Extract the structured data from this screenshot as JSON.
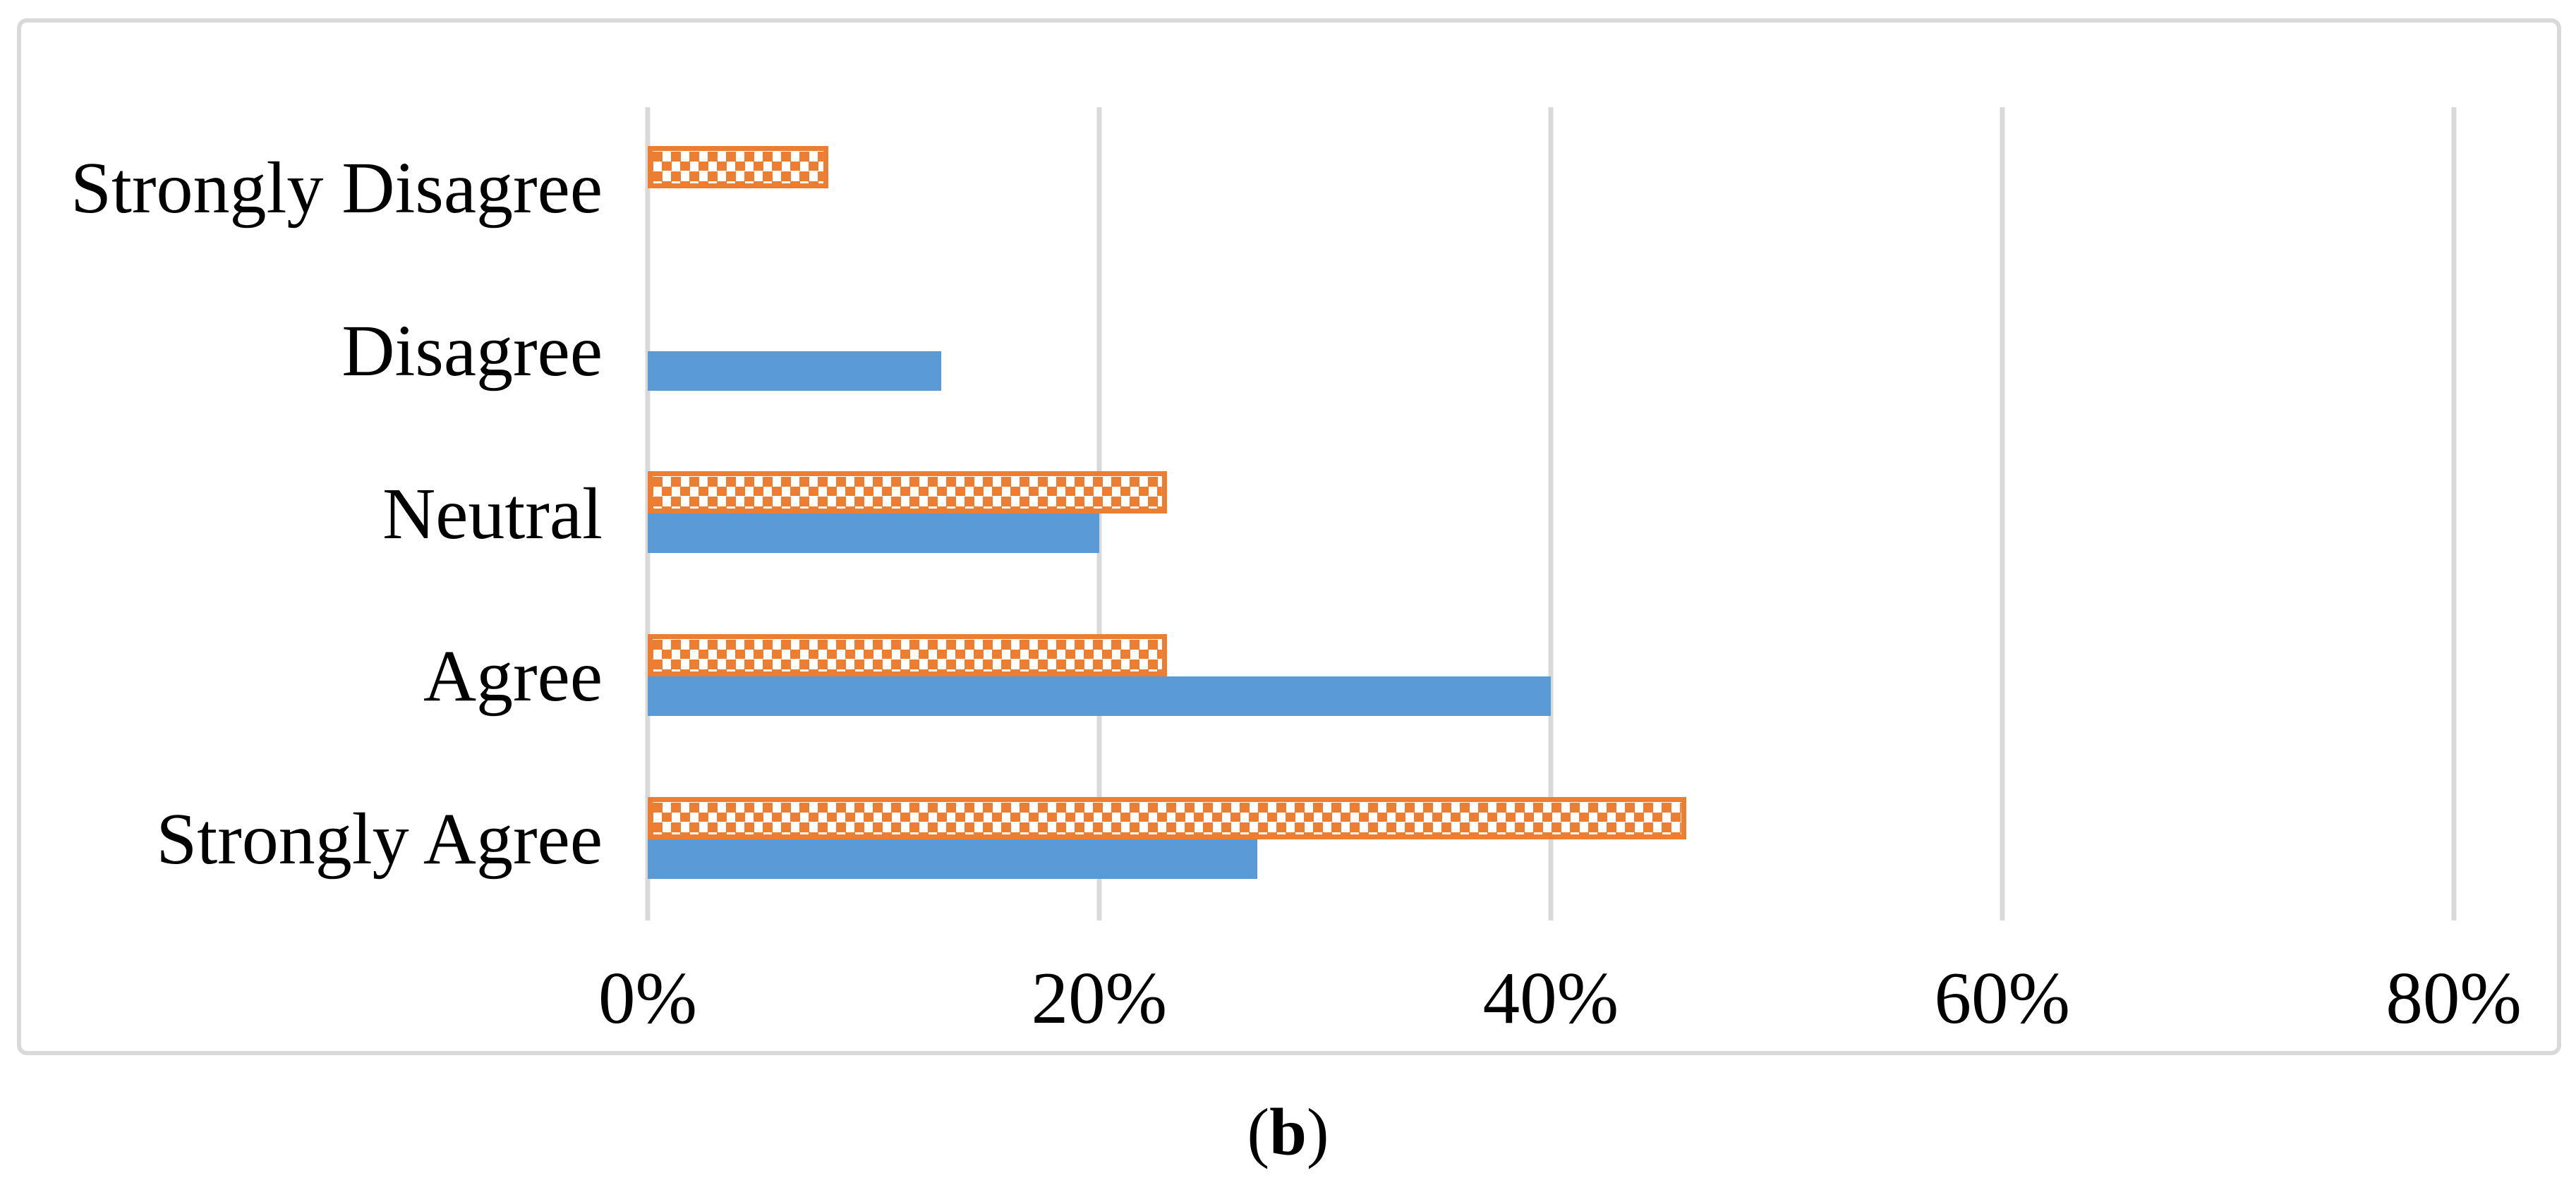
{
  "caption": {
    "open": "(",
    "letter": "b",
    "close": ")"
  },
  "colors": {
    "orange": "#ED7D31",
    "blue": "#5B9BD5",
    "gridline": "#D9D9D9",
    "chart_border": "#D9D9D9",
    "text": "#000000"
  },
  "chart_data": {
    "type": "bar",
    "orientation": "horizontal",
    "title": "",
    "xlabel": "",
    "ylabel": "",
    "categories": [
      "Strongly Disagree",
      "Disagree",
      "Neutral",
      "Agree",
      "Strongly Agree"
    ],
    "series": [
      {
        "name": "orange_dotted_pattern",
        "style": "dotted-pattern",
        "color": "#ED7D31",
        "values": [
          8,
          0,
          23,
          23,
          46
        ]
      },
      {
        "name": "blue_solid",
        "style": "solid",
        "color": "#5B9BD5",
        "values": [
          0,
          13,
          20,
          40,
          27
        ]
      }
    ],
    "value_unit": "%",
    "x_ticks": [
      {
        "value": 0,
        "label": "0%"
      },
      {
        "value": 20,
        "label": "20%"
      },
      {
        "value": 40,
        "label": "40%"
      },
      {
        "value": 60,
        "label": "60%"
      },
      {
        "value": 80,
        "label": "80%"
      }
    ],
    "xlim": [
      0,
      85.7
    ],
    "grid": "vertical",
    "legend": "none"
  }
}
